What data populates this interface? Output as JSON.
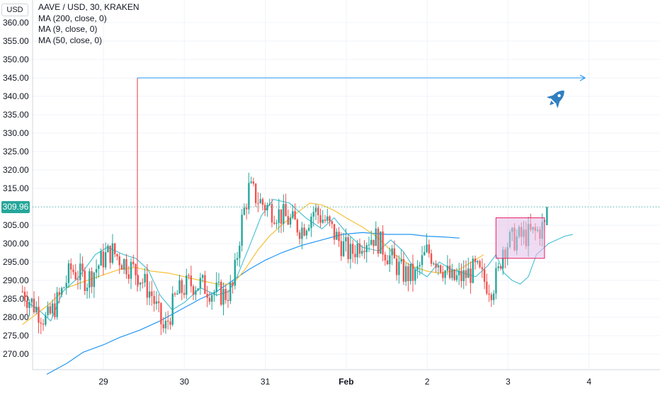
{
  "legend": {
    "symbol": "AAVE / USD, 30, KRAKEN",
    "ma200": "MA (200, close, 0)",
    "ma9": "MA (9, close, 0)",
    "ma50": "MA (50, close, 0)"
  },
  "currency_button": "USD",
  "last_price_label": "309.96",
  "colors": {
    "up": "#26a69a",
    "down": "#ef5350",
    "ma200": "#2196f3",
    "ma9": "#4ec3d6",
    "ma50": "#f7c03a",
    "price_line": "#26a69a",
    "arrow": "#2196f3",
    "vertical_line": "#f23645",
    "box_fill": "#e1bee7",
    "box_border": "#e91e63",
    "rocket": "#2f7fc1"
  },
  "icons": {
    "rocket": "rocket-icon"
  },
  "chart_data": {
    "type": "candlestick",
    "symbol": "AAVE / USD",
    "interval": "30",
    "exchange": "KRAKEN",
    "y_axis": {
      "ylim": [
        264,
        365
      ],
      "tick_labels": [
        "270.00",
        "275.00",
        "280.00",
        "285.00",
        "290.00",
        "295.00",
        "300.00",
        "305.00",
        "310.00",
        "315.00",
        "320.00",
        "325.00",
        "330.00",
        "335.00",
        "340.00",
        "345.00",
        "350.00",
        "355.00",
        "360.00"
      ]
    },
    "x_axis": {
      "tick_labels": [
        "29",
        "30",
        "31",
        "Feb",
        "2",
        "3",
        "4"
      ]
    },
    "last_price": 309.96,
    "series": [
      {
        "name": "MA (200, close, 0)",
        "values": [
          [
            28.3,
            264.5
          ],
          [
            28.55,
            267.5
          ],
          [
            28.75,
            270.5
          ],
          [
            29.0,
            272.5
          ],
          [
            29.2,
            274.5
          ],
          [
            29.45,
            276.5
          ],
          [
            29.7,
            279
          ],
          [
            29.95,
            282
          ],
          [
            30.2,
            285
          ],
          [
            30.4,
            287
          ],
          [
            30.6,
            290
          ],
          [
            30.8,
            293
          ],
          [
            31.0,
            295.5
          ],
          [
            31.2,
            297.5
          ],
          [
            31.45,
            299.5
          ],
          [
            31.7,
            301
          ],
          [
            31.95,
            302.5
          ],
          [
            32.2,
            303
          ],
          [
            32.5,
            302.5
          ],
          [
            32.8,
            302.5
          ],
          [
            33.0,
            302
          ],
          [
            33.2,
            301.8
          ],
          [
            33.4,
            301.5
          ]
        ]
      },
      {
        "name": "MA (50, close, 0)",
        "values": [
          [
            28.0,
            278
          ],
          [
            28.3,
            283
          ],
          [
            28.55,
            288
          ],
          [
            28.8,
            290
          ],
          [
            29.0,
            291.5
          ],
          [
            29.2,
            293
          ],
          [
            29.4,
            293.5
          ],
          [
            29.6,
            292.5
          ],
          [
            29.8,
            292
          ],
          [
            30.0,
            291
          ],
          [
            30.2,
            290
          ],
          [
            30.4,
            289
          ],
          [
            30.6,
            289
          ],
          [
            30.75,
            293
          ],
          [
            30.9,
            298
          ],
          [
            31.05,
            302
          ],
          [
            31.2,
            305
          ],
          [
            31.4,
            308.5
          ],
          [
            31.55,
            311
          ],
          [
            31.7,
            310.5
          ],
          [
            31.85,
            309
          ],
          [
            32.0,
            307
          ],
          [
            32.2,
            304.5
          ],
          [
            32.4,
            301.5
          ],
          [
            32.6,
            297
          ],
          [
            32.8,
            294
          ],
          [
            33.0,
            292.5
          ],
          [
            33.15,
            292
          ],
          [
            33.3,
            292.5
          ],
          [
            33.4,
            293
          ],
          [
            33.55,
            295
          ],
          [
            33.7,
            297
          ]
        ]
      },
      {
        "name": "MA (9, close, 0)",
        "values": [
          [
            28.0,
            285
          ],
          [
            28.2,
            282
          ],
          [
            28.35,
            279
          ],
          [
            28.5,
            287
          ],
          [
            28.7,
            291
          ],
          [
            28.9,
            297
          ],
          [
            29.05,
            299
          ],
          [
            29.25,
            297
          ],
          [
            29.4,
            296
          ],
          [
            29.55,
            293
          ],
          [
            29.7,
            286
          ],
          [
            29.85,
            282
          ],
          [
            30.0,
            284
          ],
          [
            30.2,
            288
          ],
          [
            30.4,
            286
          ],
          [
            30.55,
            287
          ],
          [
            30.65,
            291
          ],
          [
            30.8,
            299
          ],
          [
            30.95,
            307.5
          ],
          [
            31.1,
            312
          ],
          [
            31.3,
            311
          ],
          [
            31.5,
            307
          ],
          [
            31.7,
            304
          ],
          [
            31.85,
            307
          ],
          [
            32.0,
            303
          ],
          [
            32.2,
            299
          ],
          [
            32.4,
            298
          ],
          [
            32.55,
            301
          ],
          [
            32.7,
            298
          ],
          [
            32.85,
            293
          ],
          [
            33.0,
            291
          ],
          [
            33.15,
            295
          ],
          [
            33.3,
            293
          ],
          [
            33.45,
            292
          ],
          [
            33.6,
            291
          ],
          [
            33.75,
            294
          ],
          [
            33.85,
            297
          ],
          [
            33.95,
            292
          ],
          [
            34.05,
            290
          ],
          [
            34.15,
            289
          ],
          [
            34.25,
            291
          ],
          [
            34.35,
            297
          ],
          [
            34.5,
            300
          ],
          [
            34.7,
            302
          ],
          [
            34.8,
            302.5
          ]
        ]
      }
    ],
    "annotations": [
      {
        "type": "vertical_line",
        "x": 29.42,
        "y_range": [
          287,
          345
        ]
      },
      {
        "type": "horizontal_arrow",
        "y": 345,
        "x_range": [
          29.42,
          34.95
        ]
      },
      {
        "type": "rectangle",
        "x_range": [
          33.85,
          34.45
        ],
        "y_range": [
          296,
          307
        ]
      },
      {
        "type": "icon",
        "name": "rocket",
        "x": 34.6,
        "y": 339.5
      }
    ]
  }
}
